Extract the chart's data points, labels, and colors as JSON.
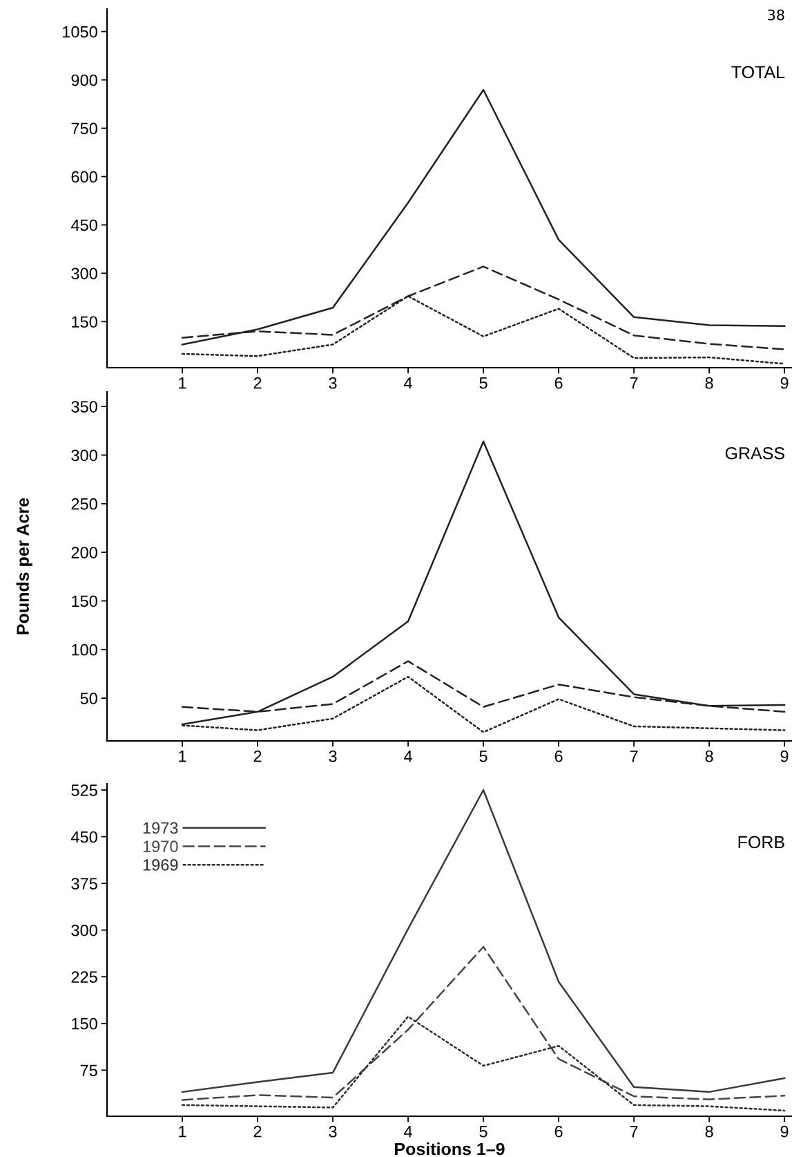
{
  "chart_data": [
    {
      "type": "line",
      "title": "TOTAL",
      "annotations": [
        "38"
      ],
      "x": [
        1,
        2,
        3,
        4,
        5,
        6,
        7,
        8,
        9
      ],
      "xlim": [
        0,
        9.1
      ],
      "xticks": [
        1,
        2,
        3,
        4,
        5,
        6,
        7,
        8,
        9
      ],
      "ylim": [
        7,
        1120
      ],
      "yticks": [
        150,
        300,
        450,
        600,
        750,
        900,
        1050
      ],
      "grid": false,
      "legend": false,
      "series": [
        {
          "color": "#222222",
          "line_style": "solid",
          "values": [
            79,
            126,
            193,
            519,
            869,
            404,
            164,
            139,
            136
          ]
        },
        {
          "color": "#222222",
          "line_style": "dashed",
          "values": [
            100,
            120,
            109,
            229,
            321,
            219,
            107,
            81,
            64
          ]
        },
        {
          "color": "#222222",
          "line_style": "dotted",
          "values": [
            50,
            43,
            79,
            229,
            104,
            190,
            37,
            39,
            19
          ]
        }
      ]
    },
    {
      "type": "line",
      "title": "GRASS",
      "ylabel": "Pounds per Acre",
      "x": [
        1,
        2,
        3,
        4,
        5,
        6,
        7,
        8,
        9
      ],
      "xlim": [
        0,
        9.1
      ],
      "xticks": [
        1,
        2,
        3,
        4,
        5,
        6,
        7,
        8,
        9
      ],
      "ylim": [
        6,
        365
      ],
      "yticks": [
        50,
        100,
        150,
        200,
        250,
        300,
        350
      ],
      "grid": false,
      "legend": false,
      "series": [
        {
          "color": "#222222",
          "line_style": "solid",
          "values": [
            23,
            36,
            72,
            129,
            314,
            133,
            54,
            42,
            43
          ]
        },
        {
          "color": "#222222",
          "line_style": "dashed",
          "values": [
            41,
            36,
            44,
            88,
            41,
            64,
            51,
            42,
            36
          ]
        },
        {
          "color": "#222222",
          "line_style": "dotted",
          "values": [
            22,
            17,
            29,
            72,
            15,
            49,
            21,
            19,
            17
          ]
        }
      ]
    },
    {
      "type": "line",
      "title": "FORB",
      "xlabel": "Positions 1–9",
      "x": [
        1,
        2,
        3,
        4,
        5,
        6,
        7,
        8,
        9
      ],
      "xlim": [
        0,
        9.1
      ],
      "xticks": [
        1,
        2,
        3,
        4,
        5,
        6,
        7,
        8,
        9
      ],
      "ylim": [
        1,
        535
      ],
      "yticks": [
        75,
        150,
        225,
        300,
        375,
        450,
        525
      ],
      "grid": false,
      "legend": "top left",
      "series": [
        {
          "name": "1973",
          "color": "#3a3a3a",
          "line_style": "solid",
          "values": [
            40,
            56,
            71,
            302,
            525,
            217,
            48,
            40,
            62
          ]
        },
        {
          "name": "1970",
          "color": "#464646",
          "line_style": "dashed",
          "values": [
            27,
            35,
            31,
            140,
            273,
            93,
            33,
            28,
            34
          ]
        },
        {
          "name": "1969",
          "color": "#2e2e2e",
          "line_style": "dotted",
          "values": [
            19,
            17,
            15,
            161,
            82,
            114,
            19,
            17,
            10
          ]
        }
      ]
    }
  ]
}
